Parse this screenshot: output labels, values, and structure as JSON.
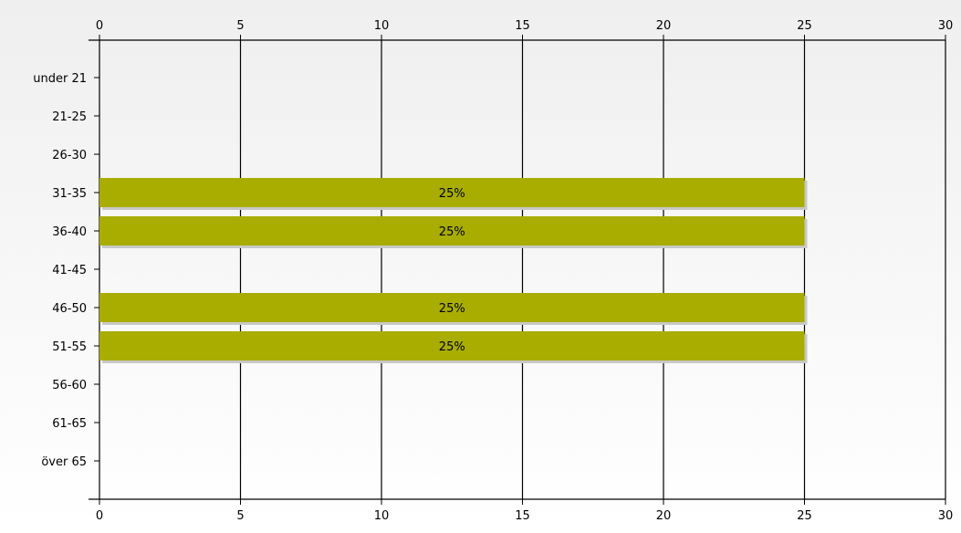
{
  "chart_data": {
    "type": "bar",
    "orientation": "horizontal",
    "categories": [
      "under 21",
      "21-25",
      "26-30",
      "31-35",
      "36-40",
      "41-45",
      "46-50",
      "51-55",
      "56-60",
      "61-65",
      "över 65"
    ],
    "values": [
      0,
      0,
      0,
      25,
      25,
      0,
      25,
      25,
      0,
      0,
      0
    ],
    "data_labels": [
      "",
      "",
      "",
      "25%",
      "25%",
      "",
      "25%",
      "25%",
      "",
      "",
      ""
    ],
    "x_ticks": [
      "0",
      "5",
      "10",
      "15",
      "20",
      "25",
      "30"
    ],
    "xlim": [
      0,
      30
    ],
    "grid": true,
    "title": "",
    "xlabel": "",
    "ylabel": "",
    "colors": {
      "bar": "#a8ad00",
      "bar_shadow": "#c8c8c8",
      "background_top": "#efefef",
      "background_bottom": "#ffffff",
      "axis": "#000000"
    }
  }
}
